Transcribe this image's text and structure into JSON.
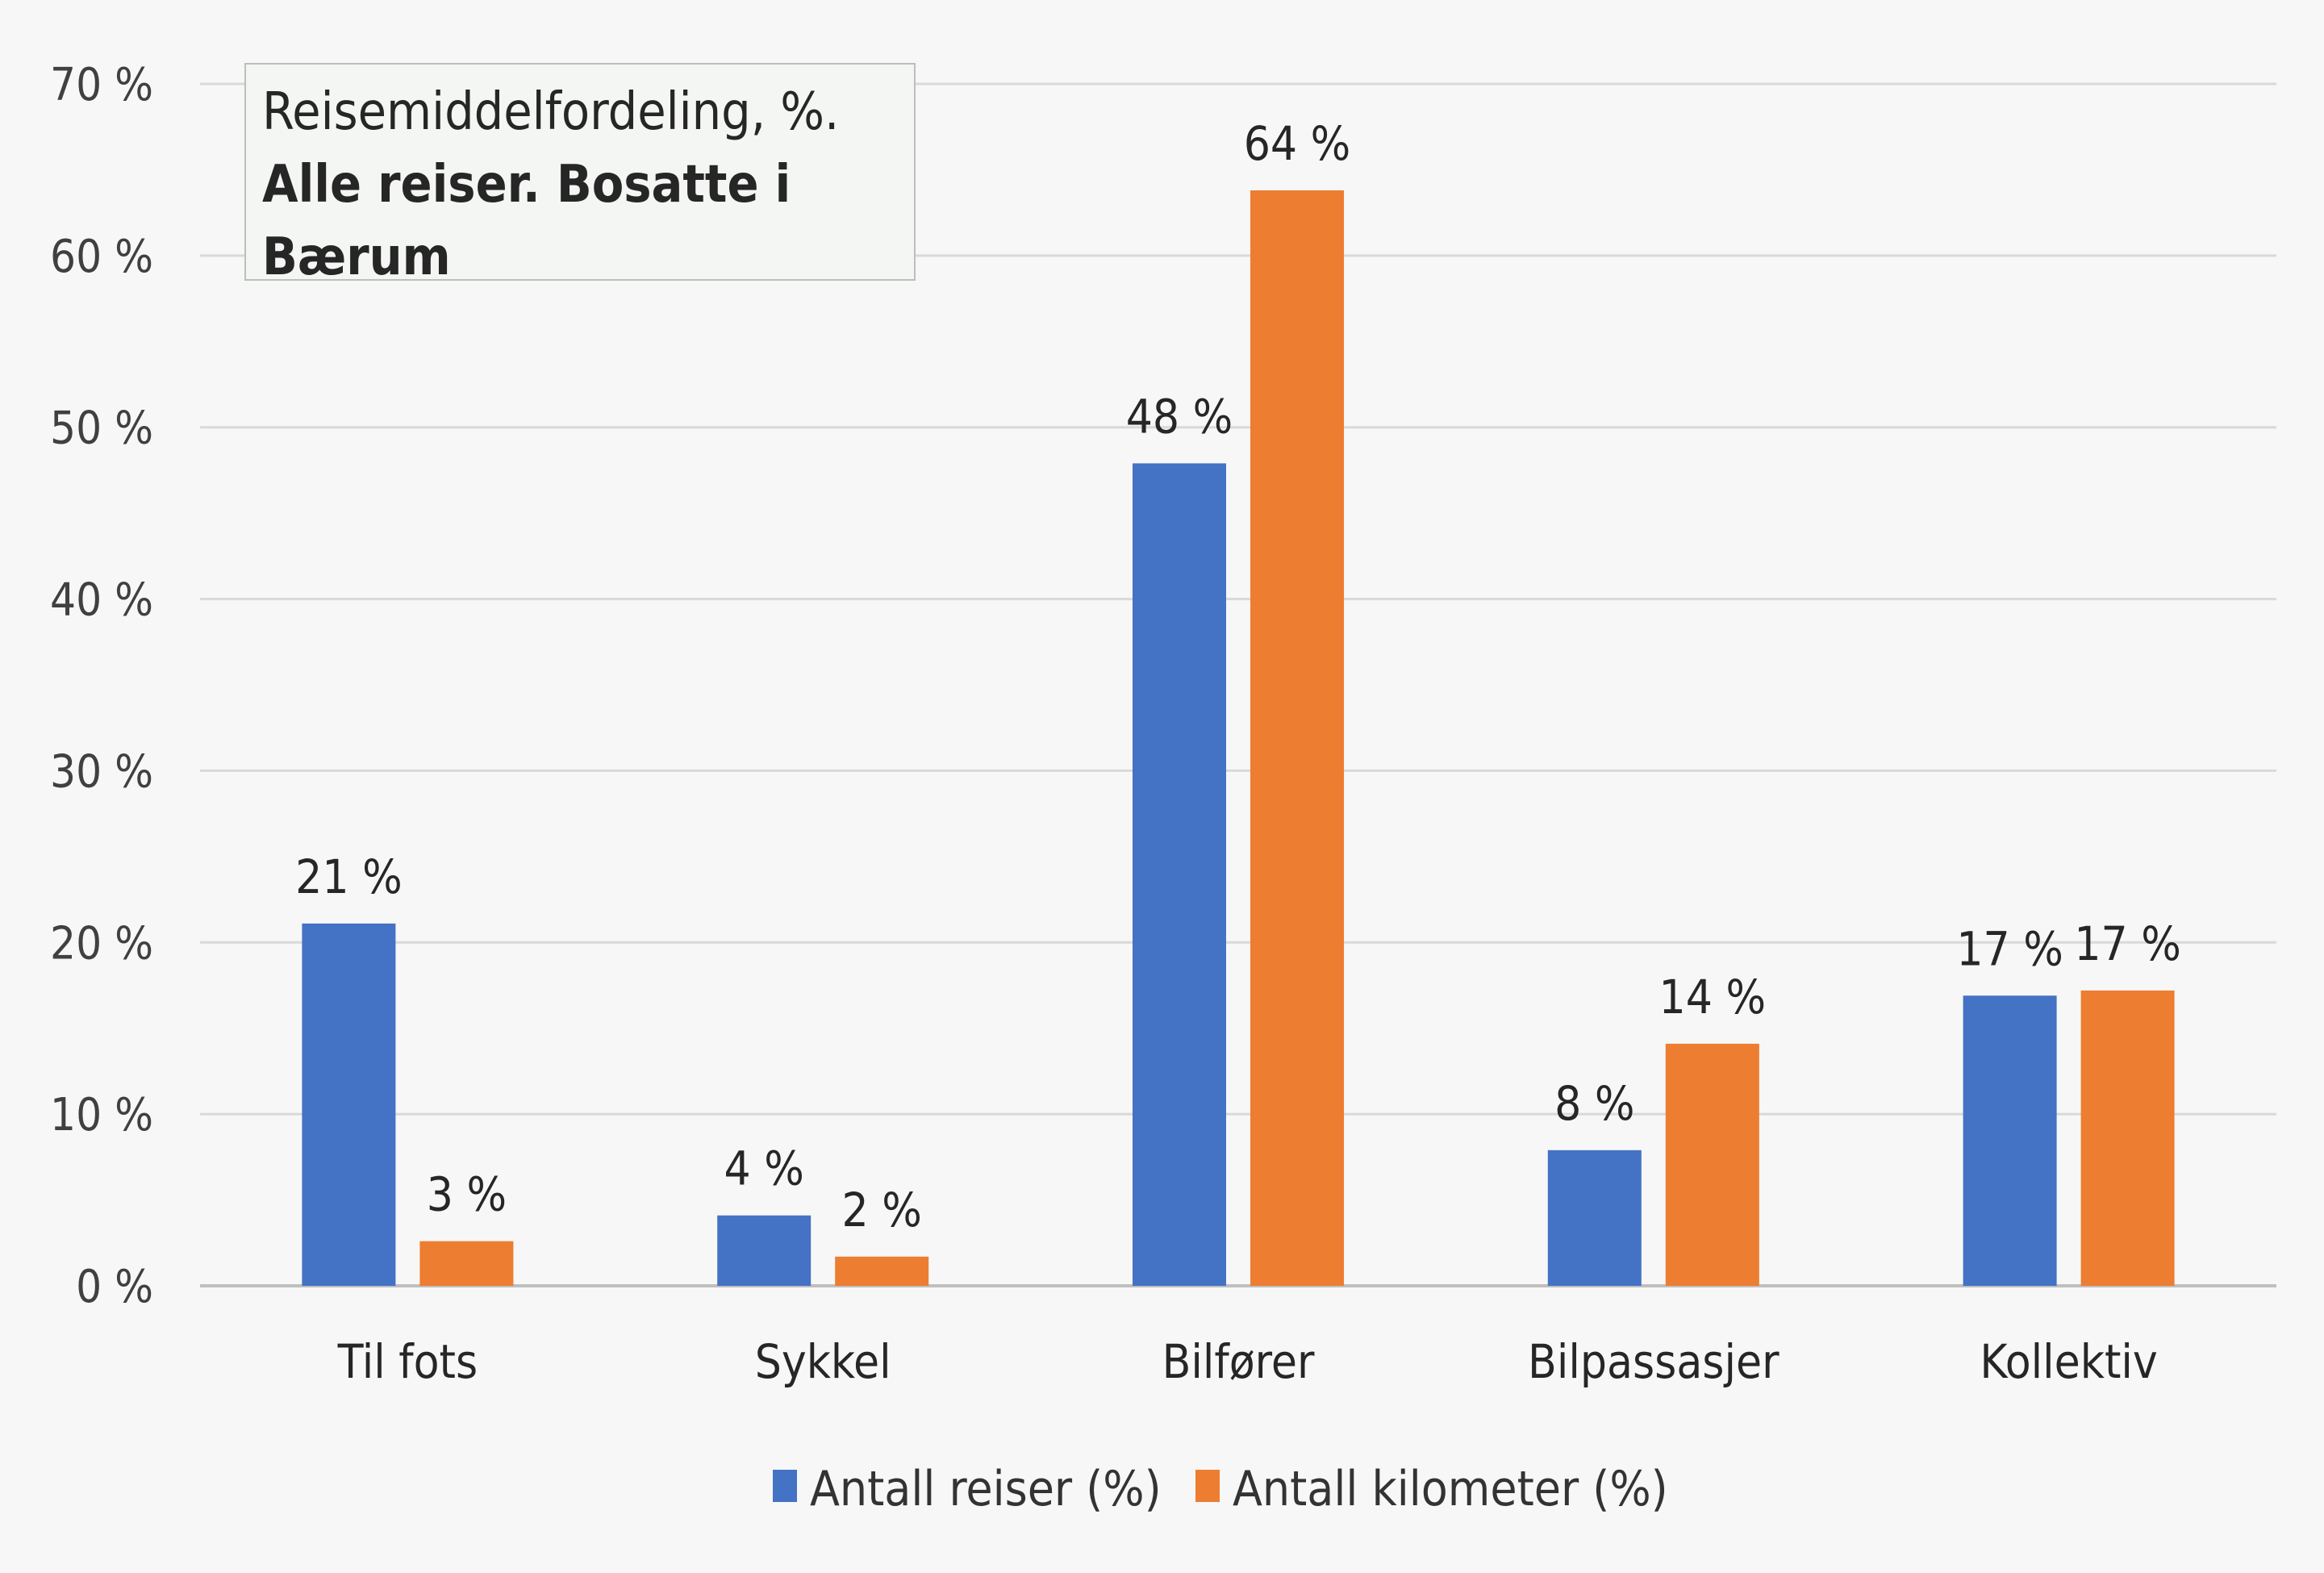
{
  "chart_data": {
    "type": "bar",
    "title": "Reisemiddelfordeling, %.",
    "subtitle": "Alle reiser. Bosatte i Bærum",
    "categories": [
      "Til fots",
      "Sykkel",
      "Bilfører",
      "Bilpassasjer",
      "Kollektiv"
    ],
    "series": [
      {
        "name": "Antall reiser (%)",
        "color": "#4472c4",
        "values": [
          21.1,
          4.1,
          47.9,
          7.9,
          16.9
        ],
        "labels": [
          "21 %",
          "4 %",
          "48 %",
          "8 %",
          "17 %"
        ]
      },
      {
        "name": "Antall kilometer (%)",
        "color": "#ed7d31",
        "values": [
          2.6,
          1.7,
          63.8,
          14.1,
          17.2
        ],
        "labels": [
          "3 %",
          "2 %",
          "64 %",
          "14 %",
          "17 %"
        ]
      }
    ],
    "ylim": [
      0,
      70
    ],
    "yticks": [
      "0 %",
      "10 %",
      "20 %",
      "30 %",
      "40 %",
      "50 %",
      "60 %",
      "70 %"
    ],
    "ytick_values": [
      0,
      10,
      20,
      30,
      40,
      50,
      60,
      70
    ],
    "grid": true,
    "legend_position": "bottom",
    "gridline_color": "#d9d9d9",
    "axis_color": "#bfbfbf"
  }
}
